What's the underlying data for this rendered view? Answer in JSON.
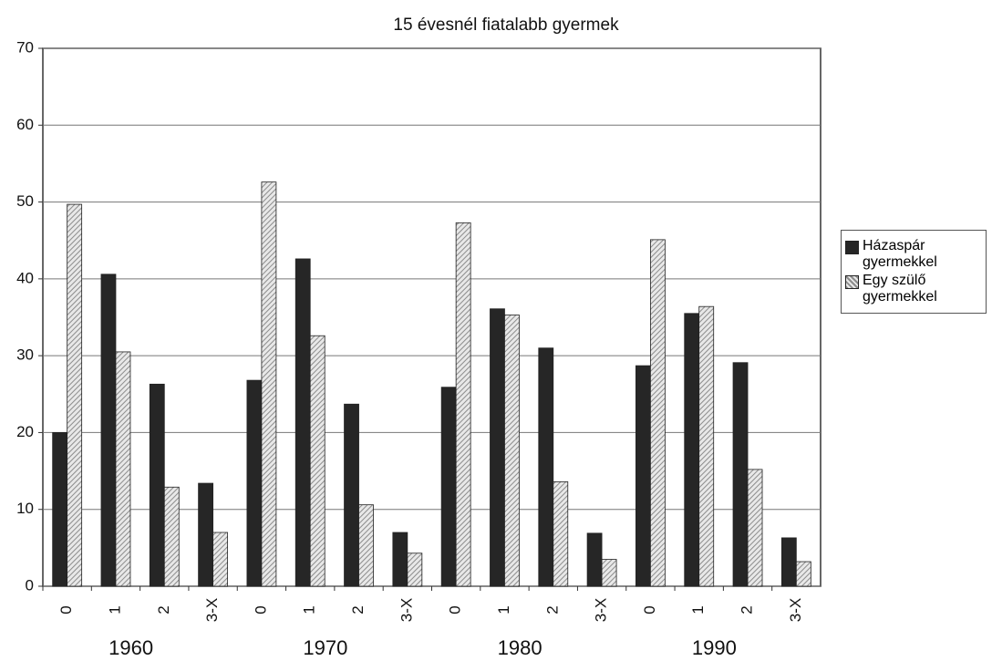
{
  "chart_data": {
    "type": "bar",
    "title": "15 évesnél fiatalabb gyermek",
    "categories": [
      "0",
      "1",
      "2",
      "3-X",
      "0",
      "1",
      "2",
      "3-X",
      "0",
      "1",
      "2",
      "3-X",
      "0",
      "1",
      "2",
      "3-X"
    ],
    "category_groups": [
      "1960",
      "1970",
      "1980",
      "1990"
    ],
    "series": [
      {
        "name": "Házaspár gyermekkel",
        "color": "#262626",
        "pattern": "solid",
        "values": [
          20,
          40.6,
          26.3,
          13.4,
          26.8,
          42.6,
          23.7,
          7,
          25.9,
          36.1,
          31,
          6.9,
          28.7,
          35.5,
          29.1,
          6.3
        ]
      },
      {
        "name": "Egy szülő gyermekkel",
        "color": "#8c8c8c",
        "pattern": "hatch",
        "values": [
          49.7,
          30.5,
          12.9,
          7,
          52.6,
          32.6,
          10.6,
          4.3,
          47.3,
          35.3,
          13.6,
          3.5,
          45.1,
          36.4,
          15.2,
          3.2
        ]
      }
    ],
    "ylim": [
      0,
      70
    ],
    "yticks": [
      0,
      10,
      20,
      30,
      40,
      50,
      60,
      70
    ],
    "grid": true,
    "legend": "right"
  }
}
